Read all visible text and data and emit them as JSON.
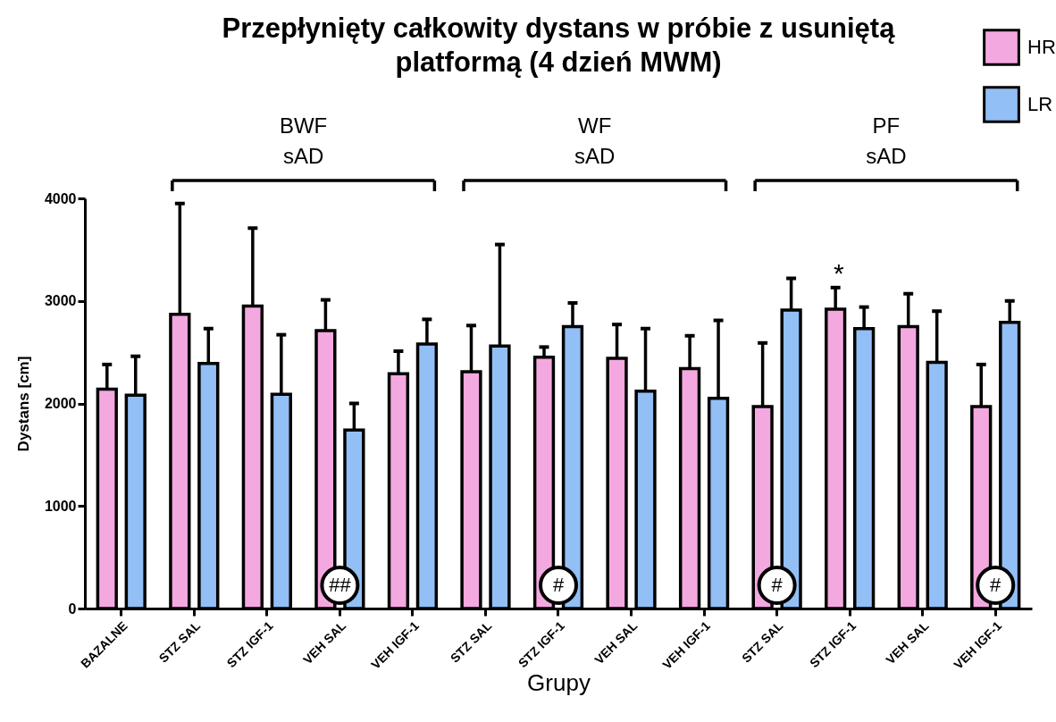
{
  "chart_data": {
    "type": "bar",
    "title": "Przepłynięty całkowity dystans w próbie z usuniętą\nplatformą (4 dzień MWM)",
    "xlabel": "Grupy",
    "ylabel": "Dystans [cm]",
    "categories": [
      "BAZALNE",
      "STZ SAL",
      "STZ IGF-1",
      "VEH SAL",
      "VEH IGF-1",
      "STZ SAL",
      "STZ IGF-1",
      "VEH SAL",
      "VEH IGF-1",
      "STZ SAL",
      "STZ IGF-1",
      "VEH SAL",
      "VEH IGF-1"
    ],
    "series": [
      {
        "name": "HR",
        "color": "#f4a8e0",
        "values": [
          2140,
          2870,
          2950,
          2710,
          2290,
          2310,
          2450,
          2440,
          2340,
          1970,
          2920,
          2750,
          1970
        ],
        "errors": [
          [
            2140,
            2380
          ],
          [
            2870,
            3950
          ],
          [
            2950,
            3710
          ],
          [
            2710,
            3010
          ],
          [
            2290,
            2510
          ],
          [
            2310,
            2760
          ],
          [
            2450,
            2550
          ],
          [
            2440,
            2770
          ],
          [
            2340,
            2660
          ],
          [
            1970,
            2590
          ],
          [
            2920,
            3130
          ],
          [
            2750,
            3070
          ],
          [
            1970,
            2380
          ]
        ]
      },
      {
        "name": "LR",
        "color": "#92bff5",
        "values": [
          2080,
          2390,
          2090,
          1740,
          2580,
          2560,
          2750,
          2120,
          2050,
          2910,
          2730,
          2400,
          2790
        ],
        "errors": [
          [
            2080,
            2460
          ],
          [
            2390,
            2730
          ],
          [
            2090,
            2670
          ],
          [
            1740,
            2000
          ],
          [
            2580,
            2820
          ],
          [
            2560,
            3550
          ],
          [
            2750,
            2980
          ],
          [
            2120,
            2730
          ],
          [
            2050,
            2810
          ],
          [
            2910,
            3220
          ],
          [
            2730,
            2940
          ],
          [
            2400,
            2900
          ],
          [
            2790,
            3000
          ]
        ]
      }
    ],
    "ylim": [
      0,
      4000
    ],
    "yticks": [
      0,
      1000,
      2000,
      3000,
      4000
    ],
    "grid": false,
    "legend": "top right",
    "annotations": [
      "BWF\nsAD",
      "WF\nsAD",
      "PF\nsAD",
      "##",
      "#",
      "#",
      "#",
      "*"
    ]
  }
}
